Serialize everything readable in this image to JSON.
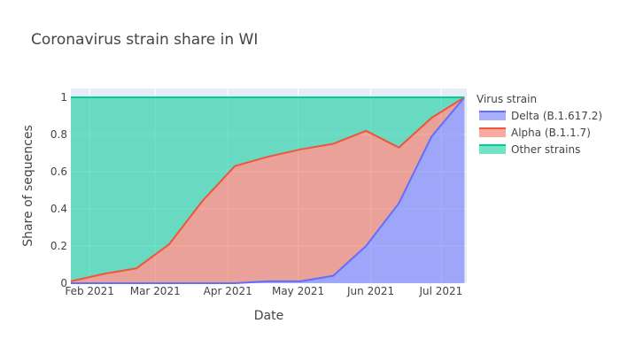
{
  "chart_data": {
    "type": "area",
    "title": "Coronavirus strain share in WI",
    "xlabel": "Date",
    "ylabel": "Share of sequences",
    "xlim": [
      "2021-01-24",
      "2021-07-12"
    ],
    "ylim": [
      0,
      1
    ],
    "x_ticks": [
      {
        "date": "2021-02-01",
        "label": "Feb 2021"
      },
      {
        "date": "2021-03-01",
        "label": "Mar 2021"
      },
      {
        "date": "2021-04-01",
        "label": "Apr 2021"
      },
      {
        "date": "2021-05-01",
        "label": "May 2021"
      },
      {
        "date": "2021-06-01",
        "label": "Jun 2021"
      },
      {
        "date": "2021-07-01",
        "label": "Jul 2021"
      }
    ],
    "y_ticks": [
      {
        "value": 0,
        "label": "0"
      },
      {
        "value": 0.2,
        "label": "0.2"
      },
      {
        "value": 0.4,
        "label": "0.4"
      },
      {
        "value": 0.6,
        "label": "0.6"
      },
      {
        "value": 0.8,
        "label": "0.8"
      },
      {
        "value": 1,
        "label": "1"
      }
    ],
    "stacked": true,
    "grid": true,
    "legend_placement": "right",
    "legend_title": "Virus strain",
    "x": [
      "2021-01-24",
      "2021-02-07",
      "2021-02-21",
      "2021-03-07",
      "2021-03-21",
      "2021-04-04",
      "2021-04-18",
      "2021-05-02",
      "2021-05-16",
      "2021-05-30",
      "2021-06-13",
      "2021-06-27",
      "2021-07-11"
    ],
    "series": [
      {
        "name": "Delta (B.1.617.2)",
        "color": "#636efa",
        "fill": "rgba(99,110,250,0.55)",
        "values": [
          0,
          0,
          0,
          0,
          0,
          0,
          0.01,
          0.01,
          0.04,
          0.2,
          0.43,
          0.79,
          1.0
        ]
      },
      {
        "name": "Alpha (B.1.1.7)",
        "color": "#ef553b",
        "fill": "rgba(239,85,59,0.5)",
        "values": [
          0.01,
          0.05,
          0.08,
          0.21,
          0.44,
          0.63,
          0.67,
          0.71,
          0.71,
          0.62,
          0.3,
          0.1,
          0
        ]
      },
      {
        "name": "Other strains",
        "color": "#00cc96",
        "fill": "rgba(0,204,150,0.55)",
        "values": [
          0.99,
          0.95,
          0.92,
          0.79,
          0.56,
          0.37,
          0.32,
          0.28,
          0.25,
          0.18,
          0.27,
          0.11,
          0
        ]
      }
    ]
  }
}
